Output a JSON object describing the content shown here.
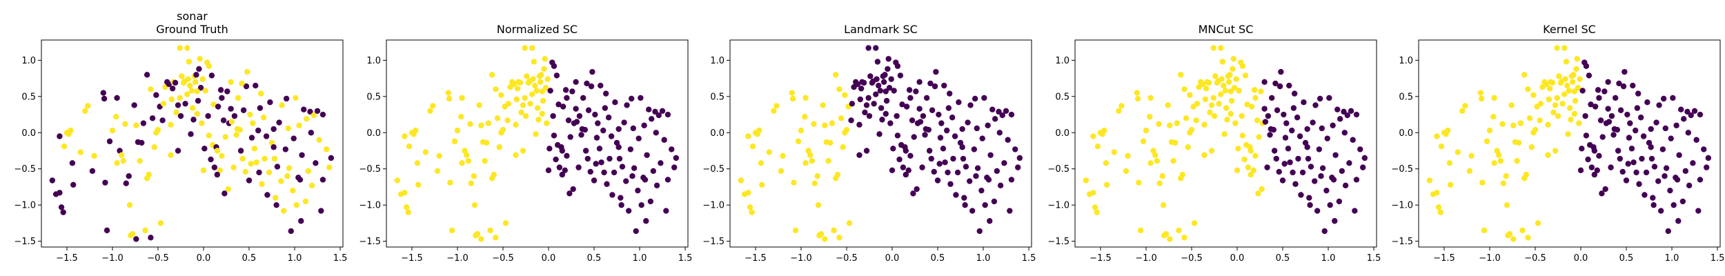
{
  "chart_data": [
    {
      "type": "scatter",
      "title": "sonar\nGround Truth",
      "xlabel": "",
      "ylabel": "",
      "xlim": [
        -1.78,
        1.53
      ],
      "ylim": [
        -1.58,
        1.28
      ],
      "xticks": [
        -1.5,
        -1.0,
        -0.5,
        0.0,
        0.5,
        1.0,
        1.5
      ],
      "yticks": [
        -1.5,
        -1.0,
        -0.5,
        0.0,
        0.5,
        1.0
      ],
      "xtick_labels": [
        "−1.5",
        "−1.0",
        "−0.5",
        "0.0",
        "0.5",
        "1.0",
        "1.5"
      ],
      "ytick_labels": [
        "−1.5",
        "−1.0",
        "−0.5",
        "0.0",
        "0.5",
        "1.0"
      ],
      "grid": false,
      "color_mode": "mixed"
    },
    {
      "type": "scatter",
      "title": "Normalized SC",
      "xlabel": "",
      "ylabel": "",
      "xlim": [
        -1.78,
        1.53
      ],
      "ylim": [
        -1.58,
        1.28
      ],
      "xticks": [
        -1.5,
        -1.0,
        -0.5,
        0.0,
        0.5,
        1.0,
        1.5
      ],
      "yticks": [
        -1.5,
        -1.0,
        -0.5,
        0.0,
        0.5,
        1.0
      ],
      "xtick_labels": [
        "−1.5",
        "−1.0",
        "−0.5",
        "0.0",
        "0.5",
        "1.0",
        "1.5"
      ],
      "ytick_labels": [
        "−1.5",
        "−1.0",
        "−0.5",
        "0.0",
        "0.5",
        "1.0"
      ],
      "grid": false,
      "split_x": 0.0
    },
    {
      "type": "scatter",
      "title": "Landmark SC",
      "xlabel": "",
      "ylabel": "",
      "xlim": [
        -1.78,
        1.53
      ],
      "ylim": [
        -1.58,
        1.28
      ],
      "xticks": [
        -1.5,
        -1.0,
        -0.5,
        0.0,
        0.5,
        1.0,
        1.5
      ],
      "yticks": [
        -1.5,
        -1.0,
        -0.5,
        0.0,
        0.5,
        1.0
      ],
      "xtick_labels": [
        "−1.5",
        "−1.0",
        "−0.5",
        "0.0",
        "0.5",
        "1.0",
        "1.5"
      ],
      "ytick_labels": [
        "−1.5",
        "−1.0",
        "−0.5",
        "0.0",
        "0.5",
        "1.0"
      ],
      "grid": false,
      "split_x": -0.45
    },
    {
      "type": "scatter",
      "title": "MNCut SC",
      "xlabel": "",
      "ylabel": "",
      "xlim": [
        -1.78,
        1.53
      ],
      "ylim": [
        -1.58,
        1.28
      ],
      "xticks": [
        -1.5,
        -1.0,
        -0.5,
        0.0,
        0.5,
        1.0,
        1.5
      ],
      "yticks": [
        -1.5,
        -1.0,
        -0.5,
        0.0,
        0.5,
        1.0
      ],
      "xtick_labels": [
        "−1.5",
        "−1.0",
        "−0.5",
        "0.0",
        "0.5",
        "1.0",
        "1.5"
      ],
      "ytick_labels": [
        "−1.5",
        "−1.0",
        "−0.5",
        "0.0",
        "0.5",
        "1.0"
      ],
      "grid": false,
      "split_x": 0.3
    },
    {
      "type": "scatter",
      "title": "Kernel SC",
      "xlabel": "",
      "ylabel": "",
      "xlim": [
        -1.78,
        1.53
      ],
      "ylim": [
        -1.58,
        1.28
      ],
      "xticks": [
        -1.5,
        -1.0,
        -0.5,
        0.0,
        0.5,
        1.0,
        1.5
      ],
      "yticks": [
        -1.5,
        -1.0,
        -0.5,
        0.0,
        0.5,
        1.0
      ],
      "xtick_labels": [
        "−1.5",
        "−1.0",
        "−0.5",
        "0.0",
        "0.5",
        "1.0",
        "1.5"
      ],
      "ytick_labels": [
        "−1.5",
        "−1.0",
        "−0.5",
        "0.0",
        "0.5",
        "1.0"
      ],
      "grid": false,
      "split_x": 0.0
    }
  ],
  "points": [
    [
      -1.66,
      -0.66
    ],
    [
      -1.62,
      -0.85
    ],
    [
      -1.58,
      -0.83
    ],
    [
      -1.56,
      -1.03
    ],
    [
      -1.54,
      -1.1
    ],
    [
      -1.53,
      -0.19
    ],
    [
      -1.5,
      0.0
    ],
    [
      -1.48,
      -0.02
    ],
    [
      -1.46,
      0.03
    ],
    [
      -1.44,
      -0.42
    ],
    [
      -1.35,
      -0.27
    ],
    [
      -1.3,
      0.3
    ],
    [
      -1.27,
      0.37
    ],
    [
      -1.22,
      -0.53
    ],
    [
      -1.1,
      0.55
    ],
    [
      -1.09,
      0.47
    ],
    [
      -1.08,
      -0.69
    ],
    [
      -1.06,
      -1.35
    ],
    [
      -1.03,
      -0.12
    ],
    [
      -1.0,
      0.03
    ],
    [
      -0.96,
      0.22
    ],
    [
      -0.95,
      -0.42
    ],
    [
      -0.92,
      -0.25
    ],
    [
      -0.9,
      -0.31
    ],
    [
      -0.88,
      -0.39
    ],
    [
      -0.86,
      0.12
    ],
    [
      -0.85,
      -0.7
    ],
    [
      -0.82,
      -0.6
    ],
    [
      -0.81,
      -1.0
    ],
    [
      -0.8,
      -1.42
    ],
    [
      -0.78,
      -1.4
    ],
    [
      -0.76,
      0.38
    ],
    [
      -0.74,
      0.1
    ],
    [
      -0.72,
      -0.13
    ],
    [
      -0.7,
      -0.39
    ],
    [
      -0.68,
      -0.14
    ],
    [
      -0.66,
      0.13
    ],
    [
      -0.64,
      -1.35
    ],
    [
      -0.62,
      0.8
    ],
    [
      -0.6,
      -0.58
    ],
    [
      -0.58,
      0.6
    ],
    [
      -0.56,
      0.2
    ],
    [
      -0.54,
      -0.2
    ],
    [
      -0.52,
      0.52
    ],
    [
      -0.5,
      0.04
    ],
    [
      -0.48,
      0.36
    ],
    [
      -0.47,
      -1.25
    ],
    [
      -0.45,
      0.17
    ],
    [
      -0.44,
      0.4
    ],
    [
      -0.42,
      0.63
    ],
    [
      -0.4,
      0.7
    ],
    [
      -0.38,
      0.67
    ],
    [
      -0.36,
      -0.31
    ],
    [
      -0.34,
      0.61
    ],
    [
      -0.33,
      0.7
    ],
    [
      -0.31,
      0.69
    ],
    [
      -0.3,
      0.28
    ],
    [
      -0.28,
      0.38
    ],
    [
      -0.26,
      0.48
    ],
    [
      -0.25,
      0.23
    ],
    [
      -0.24,
      0.78
    ],
    [
      -0.22,
      0.69
    ],
    [
      -0.21,
      0.71
    ],
    [
      -0.2,
      0.4
    ],
    [
      -0.18,
      0.53
    ],
    [
      -0.17,
      0.74
    ],
    [
      -0.16,
      0.98
    ],
    [
      -0.15,
      0.65
    ],
    [
      -0.14,
      -0.02
    ],
    [
      -0.13,
      0.58
    ],
    [
      -0.12,
      0.34
    ],
    [
      -0.11,
      0.18
    ],
    [
      -0.1,
      0.78
    ],
    [
      -0.09,
      0.7
    ],
    [
      -0.08,
      0.8
    ],
    [
      -0.07,
      0.26
    ],
    [
      -0.06,
      0.44
    ],
    [
      -0.05,
      0.88
    ],
    [
      -0.04,
      1.02
    ],
    [
      -0.03,
      0.62
    ],
    [
      -0.02,
      0.13
    ],
    [
      -0.01,
      0.74
    ],
    [
      0.01,
      -0.22
    ],
    [
      0.02,
      0.58
    ],
    [
      0.04,
      0.97
    ],
    [
      0.05,
      0.23
    ],
    [
      0.06,
      -0.04
    ],
    [
      0.08,
      -0.37
    ],
    [
      0.09,
      0.79
    ],
    [
      0.1,
      -0.17
    ],
    [
      0.11,
      0.39
    ],
    [
      0.12,
      -0.48
    ],
    [
      0.14,
      -0.2
    ],
    [
      0.15,
      -0.25
    ],
    [
      0.16,
      0.36
    ],
    [
      0.18,
      -0.52
    ],
    [
      0.19,
      0.59
    ],
    [
      0.2,
      -0.32
    ],
    [
      0.22,
      0.17
    ],
    [
      0.23,
      -0.84
    ],
    [
      0.24,
      -0.06
    ],
    [
      0.26,
      0.57
    ],
    [
      0.27,
      -0.78
    ],
    [
      0.28,
      0.13
    ],
    [
      0.3,
      0.33
    ],
    [
      0.31,
      0.15
    ],
    [
      0.33,
      -0.48
    ],
    [
      0.34,
      0.23
    ],
    [
      0.36,
      -0.03
    ],
    [
      0.37,
      0.05
    ],
    [
      0.38,
      0.48
    ],
    [
      0.4,
      0.04
    ],
    [
      0.41,
      -0.25
    ],
    [
      0.43,
      -0.36
    ],
    [
      0.44,
      0.31
    ],
    [
      0.46,
      -0.54
    ],
    [
      0.47,
      0.64
    ],
    [
      0.48,
      0.84
    ],
    [
      0.5,
      -0.66
    ],
    [
      0.51,
      0.25
    ],
    [
      0.53,
      -0.07
    ],
    [
      0.54,
      0.13
    ],
    [
      0.56,
      -0.22
    ],
    [
      0.57,
      0.65
    ],
    [
      0.58,
      -0.41
    ],
    [
      0.6,
      0.03
    ],
    [
      0.61,
      -0.55
    ],
    [
      0.63,
      0.54
    ],
    [
      0.64,
      -0.71
    ],
    [
      0.66,
      0.21
    ],
    [
      0.67,
      -0.36
    ],
    [
      0.69,
      -0.05
    ],
    [
      0.7,
      -0.86
    ],
    [
      0.72,
      -0.55
    ],
    [
      0.73,
      0.42
    ],
    [
      0.75,
      -0.14
    ],
    [
      0.77,
      0.05
    ],
    [
      0.78,
      -0.36
    ],
    [
      0.8,
      -1.0
    ],
    [
      0.81,
      -0.47
    ],
    [
      0.83,
      0.14
    ],
    [
      0.85,
      -0.67
    ],
    [
      0.86,
      0.38
    ],
    [
      0.88,
      -1.08
    ],
    [
      0.9,
      -0.23
    ],
    [
      0.91,
      0.47
    ],
    [
      0.93,
      0.06
    ],
    [
      0.94,
      -0.49
    ],
    [
      0.96,
      -1.36
    ],
    [
      0.98,
      -0.8
    ],
    [
      0.99,
      -0.08
    ],
    [
      1.01,
      0.48
    ],
    [
      1.02,
      -1.0
    ],
    [
      1.04,
      -0.62
    ],
    [
      1.05,
      0.1
    ],
    [
      1.07,
      -1.22
    ],
    [
      1.08,
      -0.31
    ],
    [
      1.1,
      0.32
    ],
    [
      1.12,
      -0.95
    ],
    [
      1.13,
      0.19
    ],
    [
      1.15,
      -0.53
    ],
    [
      1.17,
      0.29
    ],
    [
      1.19,
      -0.73
    ],
    [
      1.21,
      0.24
    ],
    [
      1.23,
      -0.42
    ],
    [
      1.25,
      0.3
    ],
    [
      1.27,
      -0.1
    ],
    [
      1.29,
      -1.08
    ],
    [
      1.31,
      0.25
    ],
    [
      1.35,
      -0.23
    ],
    [
      1.38,
      -0.48
    ],
    [
      1.4,
      -0.35
    ],
    [
      -1.2,
      -0.32
    ],
    [
      -0.95,
      0.48
    ],
    [
      -0.52,
      0.0
    ],
    [
      -0.35,
      0.46
    ],
    [
      -0.07,
      0.57
    ],
    [
      0.2,
      0.48
    ],
    [
      0.42,
      0.68
    ],
    [
      0.62,
      0.34
    ],
    [
      0.77,
      -0.2
    ],
    [
      0.92,
      -0.6
    ],
    [
      1.18,
      0.0
    ],
    [
      -0.26,
      1.17
    ],
    [
      -0.18,
      1.17
    ],
    [
      0.06,
      0.92
    ],
    [
      0.3,
      0.7
    ],
    [
      -0.62,
      -0.63
    ],
    [
      -0.28,
      -0.25
    ],
    [
      0.0,
      -0.52
    ],
    [
      0.15,
      -0.58
    ],
    [
      0.52,
      -0.43
    ],
    [
      0.79,
      -0.9
    ],
    [
      1.06,
      -0.65
    ],
    [
      1.31,
      -0.65
    ],
    [
      -0.58,
      -1.45
    ],
    [
      -0.74,
      -1.47
    ],
    [
      -1.58,
      -0.05
    ],
    [
      -1.43,
      -0.72
    ],
    [
      -0.36,
      0.11
    ]
  ],
  "ground_truth_colors": [
    0,
    0,
    0,
    0,
    0,
    1,
    1,
    1,
    1,
    0,
    1,
    1,
    1,
    0,
    0,
    0,
    0,
    0,
    0,
    1,
    1,
    1,
    0,
    1,
    1,
    1,
    0,
    0,
    1,
    1,
    1,
    0,
    1,
    0,
    1,
    0,
    0,
    1,
    0,
    1,
    1,
    0,
    1,
    0,
    1,
    0,
    1,
    0,
    1,
    1,
    0,
    0,
    1,
    0,
    1,
    0,
    1,
    0,
    1,
    0,
    1,
    1,
    1,
    0,
    1,
    1,
    1,
    1,
    0,
    1,
    1,
    0,
    1,
    1,
    0,
    1,
    0,
    0,
    1,
    0,
    1,
    1,
    0,
    1,
    1,
    0,
    1,
    0,
    0,
    1,
    1,
    0,
    0,
    1,
    0,
    1,
    0,
    1,
    0,
    0,
    1,
    0,
    1,
    0,
    0,
    1,
    1,
    0,
    1,
    1,
    1,
    1,
    0,
    1,
    0,
    1,
    0,
    1,
    0,
    1,
    0,
    1,
    1,
    0,
    1,
    0,
    0,
    1,
    1,
    1,
    1,
    0,
    0,
    1,
    0,
    1,
    0,
    1,
    0,
    0,
    0,
    1,
    1,
    1,
    0,
    0,
    1,
    1,
    0,
    1,
    0,
    1,
    1,
    0,
    1,
    0,
    0,
    0,
    1,
    1,
    1,
    0,
    1,
    1,
    0,
    0,
    1,
    0,
    0,
    1,
    1,
    0,
    1,
    0,
    1,
    1,
    1,
    0,
    1,
    0,
    0,
    1,
    0,
    1,
    1,
    1,
    1,
    1,
    0,
    1,
    0,
    1,
    1,
    0,
    0,
    0,
    0,
    0,
    0,
    1
  ],
  "colors": {
    "yellow": "#fde725",
    "purple": "#440154"
  }
}
